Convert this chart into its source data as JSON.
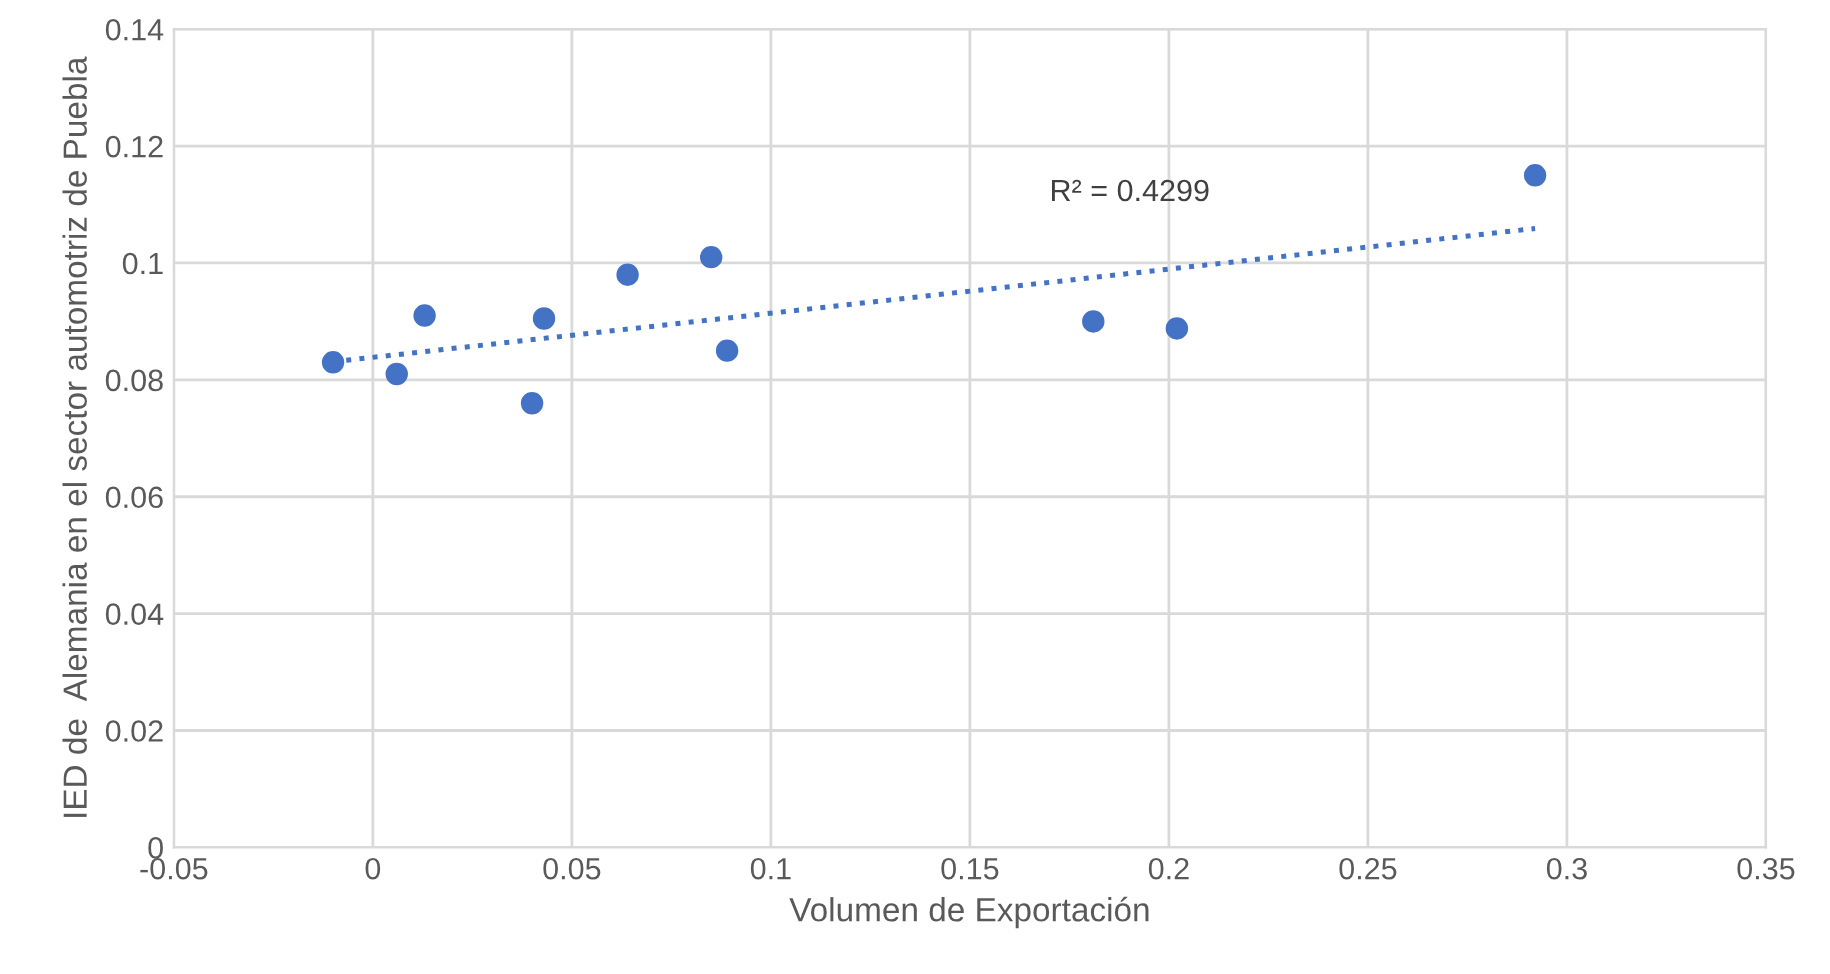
{
  "chart_data": {
    "type": "scatter",
    "xlabel": "Volumen de Exportación",
    "ylabel": "IED de  Alemania en el sector automotriz de Puebla",
    "annotations": [
      "R² = 0.4299"
    ],
    "series": [
      {
        "color": "#4472c4",
        "marker": "circle",
        "x": [
          -0.01,
          0.006,
          0.013,
          0.04,
          0.043,
          0.064,
          0.085,
          0.089,
          0.181,
          0.202,
          0.292
        ],
        "values": [
          0.083,
          0.081,
          0.091,
          0.076,
          0.0905,
          0.098,
          0.101,
          0.085,
          0.09,
          0.0888,
          0.115
        ]
      },
      {
        "type": "line",
        "color": "#4472c4",
        "line_style": "dotted",
        "marker": "none",
        "x": [
          -0.01,
          0.292
        ],
        "values": [
          0.0831,
          0.1059
        ]
      }
    ],
    "xlim": [
      -0.05,
      0.35
    ],
    "ylim": [
      0,
      0.14
    ],
    "xticks": [
      -0.05,
      0,
      0.05,
      0.1,
      0.15,
      0.2,
      0.25,
      0.3,
      0.35
    ],
    "yticks": [
      0,
      0.02,
      0.04,
      0.06,
      0.08,
      0.1,
      0.12,
      0.14
    ],
    "grid": true,
    "legend": false
  }
}
